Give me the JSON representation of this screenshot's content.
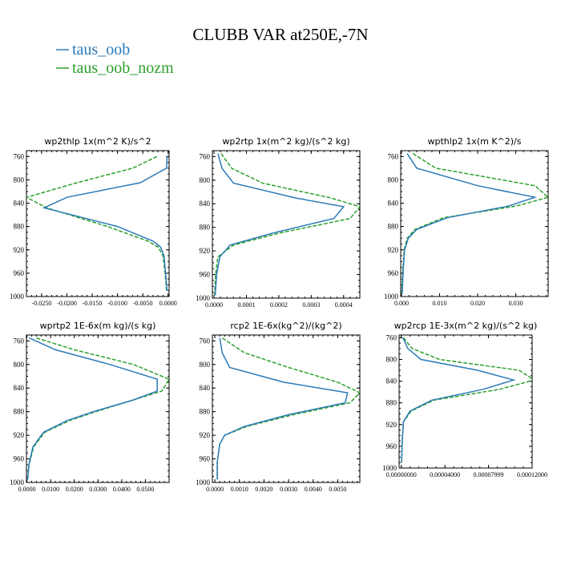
{
  "figure": {
    "title": "CLUBB VAR at250E,-7N"
  },
  "legend": [
    {
      "name": "taus_oob",
      "color": "#2b7bba",
      "dash": "solid"
    },
    {
      "name": "taus_oob_nozm",
      "color": "#2ca02c",
      "dash": "dashed"
    }
  ],
  "chart_data": [
    {
      "type": "line",
      "title": "wp2thlp  1x(m^2 K)/s^2",
      "ylim": [
        1000,
        750
      ],
      "yticks": [
        "760",
        "800",
        "840",
        "880",
        "920",
        "960",
        "1000"
      ],
      "ytick_values": [
        760,
        800,
        840,
        880,
        920,
        960,
        1000
      ],
      "xlim": [
        -0.028,
        0.0002
      ],
      "xticks": [
        "-0.0250",
        "-0.0200",
        "-0.0150",
        "-0.0100",
        "-0.0050",
        "0.0000"
      ],
      "xtick_values": [
        -0.025,
        -0.02,
        -0.015,
        -0.01,
        -0.005,
        0.0
      ],
      "y": [
        760,
        780,
        805,
        830,
        848,
        880,
        905,
        915,
        930,
        960,
        990
      ],
      "series": [
        {
          "name": "taus_oob",
          "x": [
            -0.0002,
            -0.0003,
            -0.0055,
            -0.02,
            -0.0245,
            -0.01,
            -0.003,
            -0.0015,
            -0.0008,
            -0.0005,
            -0.0002
          ]
        },
        {
          "name": "taus_oob_nozm",
          "x": [
            -0.0022,
            -0.007,
            -0.018,
            -0.028,
            -0.024,
            -0.012,
            -0.004,
            -0.002,
            -0.001,
            -0.0006,
            -0.0003
          ]
        }
      ]
    },
    {
      "type": "line",
      "title": "wp2rtp  1x(m^2 kg)/(s^2 kg)",
      "ylim": [
        1000,
        750
      ],
      "yticks": [
        "760",
        "800",
        "840",
        "880",
        "920",
        "960",
        "1000"
      ],
      "ytick_values": [
        760,
        800,
        840,
        880,
        920,
        960,
        1000
      ],
      "xlim": [
        -5e-06,
        0.00045
      ],
      "xticks": [
        "0.0000",
        "0.0001",
        "0.0002",
        "0.0003",
        "0.0004"
      ],
      "xtick_values": [
        0.0,
        0.0001,
        0.0002,
        0.0003,
        0.0004
      ],
      "y": [
        755,
        780,
        805,
        830,
        845,
        865,
        890,
        910,
        930,
        960,
        995
      ],
      "series": [
        {
          "name": "taus_oob",
          "x": [
            1.2e-05,
            2.5e-05,
            6e-05,
            0.00025,
            0.0004,
            0.00037,
            0.00018,
            5e-05,
            1.8e-05,
            8e-06,
            4e-06
          ]
        },
        {
          "name": "taus_oob_nozm",
          "x": [
            2.2e-05,
            5.5e-05,
            0.00015,
            0.00036,
            0.00045,
            0.00042,
            0.0002,
            6e-05,
            1.2e-05,
            5e-06,
            2e-06
          ]
        }
      ]
    },
    {
      "type": "line",
      "title": "wpthlp2  1x(m K^2)/s",
      "ylim": [
        1000,
        750
      ],
      "yticks": [
        "760",
        "800",
        "840",
        "880",
        "920",
        "960",
        "1000"
      ],
      "ytick_values": [
        760,
        800,
        840,
        880,
        920,
        960,
        1000
      ],
      "xlim": [
        -0.0002,
        0.0385
      ],
      "xticks": [
        "0.000",
        "0.010",
        "0.020",
        "0.030"
      ],
      "xtick_values": [
        0.0,
        0.01,
        0.02,
        0.03
      ],
      "y": [
        755,
        780,
        810,
        830,
        845,
        865,
        885,
        900,
        920,
        960,
        995
      ],
      "series": [
        {
          "name": "taus_oob",
          "x": [
            0.0015,
            0.004,
            0.02,
            0.035,
            0.028,
            0.012,
            0.004,
            0.0018,
            0.0008,
            0.0004,
            0.0002
          ]
        },
        {
          "name": "taus_oob_nozm",
          "x": [
            0.003,
            0.009,
            0.035,
            0.0385,
            0.03,
            0.011,
            0.0035,
            0.0015,
            0.0007,
            0.0003,
            0.0001
          ]
        }
      ]
    },
    {
      "type": "line",
      "title": "wprtp2  1E-6x(m kg)/(s kg)",
      "ylim": [
        1000,
        750
      ],
      "yticks": [
        "760",
        "800",
        "840",
        "880",
        "920",
        "960",
        "1000"
      ],
      "ytick_values": [
        760,
        800,
        840,
        880,
        920,
        960,
        1000
      ],
      "xlim": [
        -0.0002,
        0.06
      ],
      "xticks": [
        "0.0000",
        "0.0100",
        "0.0200",
        "0.0300",
        "0.0400",
        "0.0500"
      ],
      "xtick_values": [
        0.0,
        0.01,
        0.02,
        0.03,
        0.04,
        0.05
      ],
      "y": [
        755,
        775,
        800,
        825,
        845,
        860,
        880,
        895,
        915,
        940,
        970,
        995
      ],
      "series": [
        {
          "name": "taus_oob",
          "x": [
            0.001,
            0.012,
            0.035,
            0.055,
            0.055,
            0.045,
            0.028,
            0.017,
            0.007,
            0.0025,
            0.0008,
            0.0003
          ]
        },
        {
          "name": "taus_oob_nozm",
          "x": [
            0.004,
            0.02,
            0.045,
            0.06,
            0.057,
            0.045,
            0.029,
            0.018,
            0.0075,
            0.0028,
            0.0009,
            0.0003
          ]
        }
      ]
    },
    {
      "type": "line",
      "title": "rcp2  1E-6x(kg^2)/(kg^2)",
      "ylim": [
        1000,
        750
      ],
      "yticks": [
        "760",
        "800",
        "840",
        "880",
        "920",
        "960",
        "1000"
      ],
      "ytick_values": [
        760,
        800,
        840,
        880,
        920,
        960,
        1000
      ],
      "xlim": [
        -0.0001,
        0.0059
      ],
      "xticks": [
        "0.0000",
        "0.0010",
        "0.0020",
        "0.0030",
        "0.0040",
        "0.0050"
      ],
      "xtick_values": [
        0.0,
        0.001,
        0.002,
        0.003,
        0.004,
        0.005
      ],
      "y": [
        755,
        780,
        805,
        830,
        848,
        865,
        885,
        905,
        920,
        935,
        965,
        995
      ],
      "series": [
        {
          "name": "taus_oob",
          "x": [
            0.0002,
            0.0003,
            0.0006,
            0.0028,
            0.0054,
            0.0053,
            0.003,
            0.0012,
            0.0004,
            0.0002,
            0.0001,
            0.0001
          ]
        },
        {
          "name": "taus_oob_nozm",
          "x": [
            0.0003,
            0.0012,
            0.003,
            0.005,
            0.0059,
            0.0055,
            0.0032,
            0.0013,
            0.0004,
            0.0002,
            0.0001,
            0.0001
          ]
        }
      ]
    },
    {
      "type": "line",
      "title": "wp2rcp  1E-3x(m^2 kg)/(s^2 kg)",
      "ylim": [
        1000,
        755
      ],
      "yticks": [
        "760",
        "800",
        "840",
        "880",
        "920",
        "960",
        "1000"
      ],
      "ytick_values": [
        760,
        800,
        840,
        880,
        920,
        960,
        1000
      ],
      "xlim": [
        -2e-06,
        0.00012
      ],
      "xticks": [
        "0.00000000",
        "0.00004000",
        "0.00007999",
        "0.00012000"
      ],
      "xtick_values": [
        0.0,
        4e-05,
        7.999e-05,
        0.00012
      ],
      "y": [
        760,
        780,
        800,
        820,
        838,
        855,
        875,
        895,
        915,
        945,
        990
      ],
      "series": [
        {
          "name": "taus_oob",
          "x": [
            1.5e-06,
            6e-06,
            1.8e-05,
            7e-05,
            0.000103,
            7.5e-05,
            2.8e-05,
            8e-06,
            2e-06,
            1e-06,
            3e-07
          ]
        },
        {
          "name": "taus_oob_nozm",
          "x": [
            2e-06,
            1e-05,
            3.5e-05,
            0.000108,
            0.000122,
            9e-05,
            3e-05,
            9e-06,
            2e-06,
            1e-06,
            3e-07
          ]
        }
      ]
    }
  ]
}
